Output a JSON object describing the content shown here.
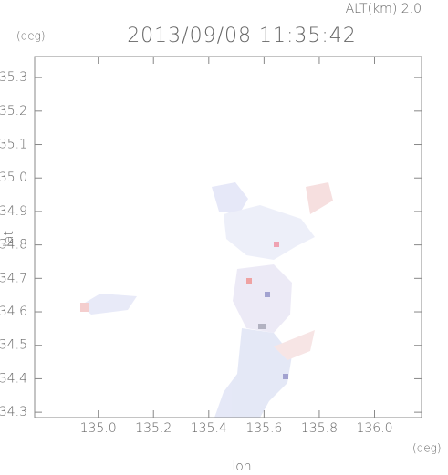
{
  "chart_data": {
    "type": "map",
    "title": "2013/09/08 11:35:42",
    "altitude_label": "ALT(km) 2.0",
    "y_unit": "(deg)",
    "x_unit": "(deg)",
    "x_label": "lon",
    "y_label": "lat",
    "xlim": [
      134.77,
      136.17
    ],
    "ylim": [
      34.284,
      35.363
    ],
    "xticks": [
      {
        "value": 135,
        "label": "135.0"
      },
      135.2,
      135.4,
      135.6,
      135.8,
      {
        "value": 136,
        "label": "136.0"
      }
    ],
    "yticks": [
      35.3,
      35.2,
      35.1,
      {
        "value": 35,
        "label": "35.0"
      },
      34.9,
      34.8,
      34.7,
      34.6,
      34.5,
      34.4,
      34.3
    ]
  }
}
